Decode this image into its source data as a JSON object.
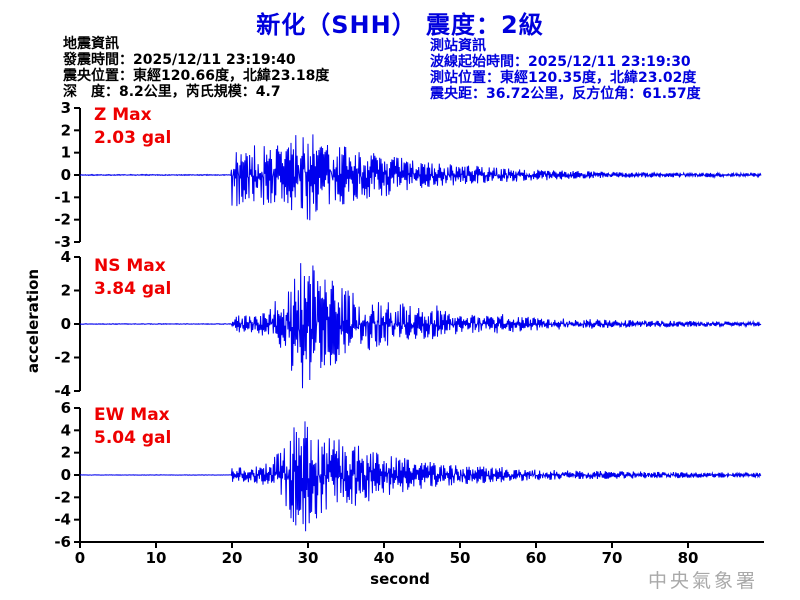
{
  "title": "新化（SHH） 震度：2級",
  "colors": {
    "title_blue": "#0000dd",
    "trace_blue": "#0000ee",
    "max_label_red": "#ee0000",
    "axis_black": "#000000",
    "watermark_gray": "#a9a9a9"
  },
  "event_info": {
    "heading": "地震資訊",
    "lines": [
      "發震時間：2025/12/11 23:19:40",
      "震央位置：東經120.66度，北緯23.18度",
      "深　度：8.2公里，芮氏規模：4.7"
    ]
  },
  "station_info": {
    "heading": "測站資訊",
    "lines": [
      "波線起始時間：2025/12/11 23:19:30",
      "測站位置：東經120.35度，北緯23.02度",
      "震央距：36.72公里，反方位角：61.57度"
    ]
  },
  "watermark": "中央氣象署",
  "chart_data": {
    "type": "line",
    "subtype": "seismogram-3-component",
    "title": "新化（SHH） 震度：2級",
    "xlabel": "second",
    "ylabel": "acceleration",
    "x_range": [
      0,
      90
    ],
    "x_ticks": [
      0,
      10,
      20,
      30,
      40,
      50,
      60,
      70,
      80
    ],
    "signal_onset_s": 20,
    "trace_end_s": 89.6,
    "grid": false,
    "legend": "none",
    "series": [
      {
        "component": "Z",
        "max_label": "Z Max",
        "max_value_label": "2.03 gal",
        "max_gal": 2.03,
        "peak_time_s": 30,
        "ylim": [
          -3,
          3
        ],
        "y_ticks": [
          3,
          2,
          1,
          0,
          -1,
          -2,
          -3
        ],
        "envelope_gal": [
          [
            0,
            0.02
          ],
          [
            19.9,
            0.02
          ],
          [
            20,
            1.5
          ],
          [
            21,
            1.4
          ],
          [
            22,
            1.25
          ],
          [
            23,
            1.3
          ],
          [
            24,
            1.35
          ],
          [
            25,
            1.3
          ],
          [
            26,
            1.5
          ],
          [
            27,
            1.6
          ],
          [
            28,
            1.8
          ],
          [
            29,
            1.9
          ],
          [
            30,
            2.03
          ],
          [
            31,
            1.8
          ],
          [
            32,
            1.6
          ],
          [
            33,
            1.5
          ],
          [
            34,
            1.3
          ],
          [
            35,
            1.25
          ],
          [
            36,
            1.2
          ],
          [
            37,
            1.1
          ],
          [
            38,
            1.0
          ],
          [
            40,
            0.95
          ],
          [
            42,
            0.8
          ],
          [
            44,
            0.65
          ],
          [
            46,
            0.55
          ],
          [
            48,
            0.5
          ],
          [
            50,
            0.45
          ],
          [
            52,
            0.4
          ],
          [
            54,
            0.35
          ],
          [
            56,
            0.3
          ],
          [
            58,
            0.28
          ],
          [
            60,
            0.25
          ],
          [
            63,
            0.2
          ],
          [
            66,
            0.17
          ],
          [
            70,
            0.14
          ],
          [
            75,
            0.12
          ],
          [
            80,
            0.1
          ],
          [
            85,
            0.09
          ],
          [
            89.6,
            0.08
          ]
        ]
      },
      {
        "component": "NS",
        "max_label": "NS Max",
        "max_value_label": "3.84 gal",
        "max_gal": 3.84,
        "peak_time_s": 29.7,
        "ylim": [
          -4,
          4
        ],
        "y_ticks": [
          4,
          2,
          0,
          -2,
          -4
        ],
        "envelope_gal": [
          [
            0,
            0.02
          ],
          [
            19.9,
            0.02
          ],
          [
            20,
            0.5
          ],
          [
            21,
            0.55
          ],
          [
            22,
            0.5
          ],
          [
            23,
            0.6
          ],
          [
            24,
            0.65
          ],
          [
            25,
            0.9
          ],
          [
            26,
            1.5
          ],
          [
            26.8,
            1.9
          ],
          [
            27.5,
            2.4
          ],
          [
            28.3,
            3.1
          ],
          [
            29,
            3.6
          ],
          [
            29.7,
            3.84
          ],
          [
            30.5,
            3.5
          ],
          [
            31.2,
            3.3
          ],
          [
            32,
            2.9
          ],
          [
            33,
            2.6
          ],
          [
            34,
            2.2
          ],
          [
            35,
            2.0
          ],
          [
            36,
            1.8
          ],
          [
            37,
            1.6
          ],
          [
            38,
            1.5
          ],
          [
            39,
            1.4
          ],
          [
            40,
            1.3
          ],
          [
            41,
            1.2
          ],
          [
            42,
            1.35
          ],
          [
            43,
            1.1
          ],
          [
            44,
            1.0
          ],
          [
            45,
            0.9
          ],
          [
            46,
            0.85
          ],
          [
            47,
            1.05
          ],
          [
            48,
            0.75
          ],
          [
            49,
            0.65
          ],
          [
            50,
            0.6
          ],
          [
            52,
            0.52
          ],
          [
            54,
            0.5
          ],
          [
            55,
            0.65
          ],
          [
            56,
            0.5
          ],
          [
            58,
            0.42
          ],
          [
            60,
            0.38
          ],
          [
            63,
            0.32
          ],
          [
            66,
            0.28
          ],
          [
            70,
            0.24
          ],
          [
            75,
            0.2
          ],
          [
            80,
            0.17
          ],
          [
            85,
            0.14
          ],
          [
            89.6,
            0.12
          ]
        ]
      },
      {
        "component": "EW",
        "max_label": "EW Max",
        "max_value_label": "5.04 gal",
        "max_gal": 5.04,
        "peak_time_s": 29.4,
        "ylim": [
          -6,
          6
        ],
        "y_ticks": [
          6,
          4,
          2,
          0,
          -2,
          -4,
          -6
        ],
        "envelope_gal": [
          [
            0,
            0.02
          ],
          [
            19.9,
            0.02
          ],
          [
            20,
            0.55
          ],
          [
            21,
            0.6
          ],
          [
            22,
            0.6
          ],
          [
            23,
            0.7
          ],
          [
            24,
            0.8
          ],
          [
            25,
            1.1
          ],
          [
            26,
            1.8
          ],
          [
            26.8,
            2.5
          ],
          [
            27.5,
            3.2
          ],
          [
            28.2,
            3.9
          ],
          [
            29,
            4.6
          ],
          [
            29.4,
            5.04
          ],
          [
            30,
            3.9
          ],
          [
            31,
            3.5
          ],
          [
            32,
            3.1
          ],
          [
            33,
            3.0
          ],
          [
            34,
            3.2
          ],
          [
            35,
            2.8
          ],
          [
            36,
            2.5
          ],
          [
            37,
            2.3
          ],
          [
            38,
            2.1
          ],
          [
            39,
            1.9
          ],
          [
            40,
            1.7
          ],
          [
            41,
            1.55
          ],
          [
            42,
            1.45
          ],
          [
            43,
            1.35
          ],
          [
            44,
            1.25
          ],
          [
            45,
            1.15
          ],
          [
            46,
            1.05
          ],
          [
            47,
            0.95
          ],
          [
            48,
            0.9
          ],
          [
            50,
            0.8
          ],
          [
            52,
            0.72
          ],
          [
            54,
            0.75
          ],
          [
            56,
            0.6
          ],
          [
            58,
            0.52
          ],
          [
            60,
            0.45
          ],
          [
            63,
            0.4
          ],
          [
            66,
            0.35
          ],
          [
            70,
            0.3
          ],
          [
            75,
            0.27
          ],
          [
            80,
            0.25
          ],
          [
            85,
            0.21
          ],
          [
            89.6,
            0.18
          ]
        ]
      }
    ]
  }
}
